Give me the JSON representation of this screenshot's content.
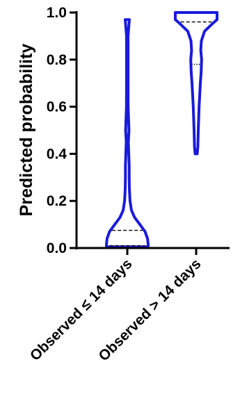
{
  "chart_data": {
    "type": "violin",
    "ylabel": "Predicted probability",
    "ylim": [
      0,
      1
    ],
    "yticks": [
      "0.0",
      "0.2",
      "0.4",
      "0.6",
      "0.8",
      "1.0"
    ],
    "categories": [
      "Observed ≤ 14 days",
      "Observed > 14 days"
    ],
    "colors": {
      "violin": "#1a1adb",
      "axis": "#000000",
      "quartile": "#000000"
    },
    "violins": [
      {
        "category": "Observed ≤ 14 days",
        "min": 0.005,
        "max": 0.97,
        "median": 0.01,
        "q3": 0.075,
        "profile": [
          [
            0.005,
            1.0
          ],
          [
            0.015,
            1.0
          ],
          [
            0.04,
            0.97
          ],
          [
            0.07,
            0.85
          ],
          [
            0.1,
            0.6
          ],
          [
            0.13,
            0.35
          ],
          [
            0.16,
            0.2
          ],
          [
            0.2,
            0.13
          ],
          [
            0.25,
            0.1
          ],
          [
            0.3,
            0.09
          ],
          [
            0.35,
            0.09
          ],
          [
            0.4,
            0.07
          ],
          [
            0.45,
            0.05
          ],
          [
            0.5,
            0.08
          ],
          [
            0.55,
            0.06
          ],
          [
            0.6,
            0.04
          ],
          [
            0.7,
            0.035
          ],
          [
            0.8,
            0.035
          ],
          [
            0.9,
            0.035
          ],
          [
            0.95,
            0.08
          ],
          [
            0.97,
            0.1
          ]
        ]
      },
      {
        "category": "Observed > 14 days",
        "min": 0.4,
        "max": 1.0,
        "median": 0.96,
        "q1": 0.78,
        "profile": [
          [
            0.4,
            0.05
          ],
          [
            0.43,
            0.08
          ],
          [
            0.5,
            0.1
          ],
          [
            0.55,
            0.12
          ],
          [
            0.6,
            0.14
          ],
          [
            0.65,
            0.17
          ],
          [
            0.7,
            0.2
          ],
          [
            0.75,
            0.24
          ],
          [
            0.8,
            0.26
          ],
          [
            0.84,
            0.22
          ],
          [
            0.88,
            0.25
          ],
          [
            0.92,
            0.4
          ],
          [
            0.95,
            0.75
          ],
          [
            0.97,
            1.0
          ],
          [
            0.99,
            1.0
          ],
          [
            1.0,
            1.0
          ]
        ]
      }
    ]
  }
}
